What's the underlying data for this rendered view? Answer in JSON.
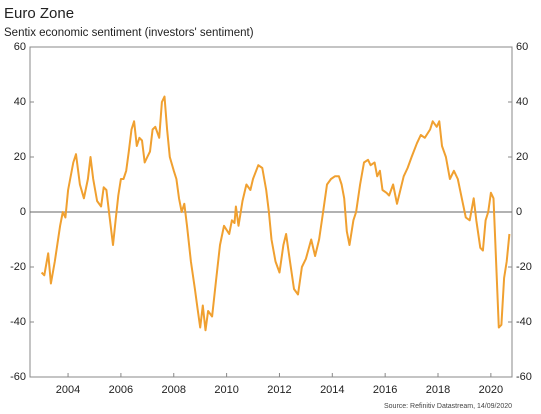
{
  "chart_data": {
    "type": "line",
    "title": "Euro Zone",
    "subtitle": "Sentix economic sentiment (investors' sentiment)",
    "source": "Source: Refinitiv Datastream, 14/09/2020",
    "xlim": [
      2002.56,
      2020.8
    ],
    "xticks": [
      2004,
      2006,
      2008,
      2010,
      2012,
      2014,
      2016,
      2018,
      2020
    ],
    "ylim": [
      -60,
      60
    ],
    "yticks": [
      -60,
      -40,
      -20,
      0,
      20,
      40,
      60
    ],
    "y2lim": [
      -60,
      60
    ],
    "y2ticks": [
      -60,
      -40,
      -20,
      0,
      20,
      40,
      60
    ],
    "zero_line": true,
    "x": [
      2003.0,
      2003.1,
      2003.25,
      2003.35,
      2003.5,
      2003.7,
      2003.8,
      2003.9,
      2004.0,
      2004.2,
      2004.3,
      2004.45,
      2004.6,
      2004.75,
      2004.85,
      2004.95,
      2005.1,
      2005.25,
      2005.35,
      2005.45,
      2005.55,
      2005.7,
      2005.8,
      2005.9,
      2006.0,
      2006.1,
      2006.2,
      2006.3,
      2006.4,
      2006.5,
      2006.6,
      2006.7,
      2006.8,
      2006.9,
      2007.0,
      2007.1,
      2007.2,
      2007.3,
      2007.45,
      2007.55,
      2007.65,
      2007.75,
      2007.85,
      2008.0,
      2008.1,
      2008.2,
      2008.3,
      2008.4,
      2008.5,
      2008.65,
      2008.8,
      2008.9,
      2009.0,
      2009.1,
      2009.2,
      2009.3,
      2009.45,
      2009.6,
      2009.75,
      2009.9,
      2010.1,
      2010.2,
      2010.3,
      2010.35,
      2010.45,
      2010.6,
      2010.75,
      2010.9,
      2011.0,
      2011.2,
      2011.35,
      2011.5,
      2011.6,
      2011.7,
      2011.85,
      2012.0,
      2012.15,
      2012.25,
      2012.4,
      2012.55,
      2012.7,
      2012.85,
      2013.0,
      2013.2,
      2013.35,
      2013.5,
      2013.65,
      2013.8,
      2013.95,
      2014.1,
      2014.25,
      2014.35,
      2014.45,
      2014.55,
      2014.65,
      2014.8,
      2014.9,
      2015.05,
      2015.2,
      2015.35,
      2015.45,
      2015.6,
      2015.7,
      2015.8,
      2015.9,
      2016.05,
      2016.15,
      2016.3,
      2016.45,
      2016.55,
      2016.7,
      2016.85,
      2017.0,
      2017.2,
      2017.35,
      2017.5,
      2017.7,
      2017.8,
      2017.95,
      2018.05,
      2018.15,
      2018.3,
      2018.45,
      2018.6,
      2018.75,
      2018.9,
      2019.05,
      2019.2,
      2019.35,
      2019.45,
      2019.6,
      2019.7,
      2019.8,
      2019.9,
      2020.0,
      2020.1,
      2020.2,
      2020.3,
      2020.4,
      2020.5,
      2020.6,
      2020.7
    ],
    "series": [
      {
        "color": "#f0a030",
        "values": [
          -22,
          -23,
          -15,
          -26,
          -18,
          -5,
          0,
          -2,
          8,
          18,
          21,
          10,
          5,
          12,
          20,
          12,
          4,
          2,
          9,
          8,
          0,
          -12,
          -3,
          6,
          12,
          12,
          15,
          22,
          30,
          33,
          24,
          27,
          26,
          18,
          20,
          22,
          30,
          31,
          27,
          40,
          42,
          30,
          20,
          15,
          12,
          5,
          0,
          3,
          -5,
          -18,
          -28,
          -35,
          -42,
          -34,
          -43,
          -36,
          -38,
          -25,
          -12,
          -5,
          -8,
          -3,
          -4,
          2,
          -5,
          4,
          10,
          8,
          12,
          17,
          16,
          8,
          0,
          -10,
          -18,
          -22,
          -12,
          -8,
          -18,
          -28,
          -30,
          -20,
          -17,
          -10,
          -16,
          -10,
          0,
          10,
          12,
          13,
          13,
          10,
          5,
          -7,
          -12,
          -3,
          0,
          10,
          18,
          19,
          17,
          18,
          13,
          15,
          8,
          7,
          6,
          10,
          3,
          7,
          13,
          16,
          20,
          25,
          28,
          27,
          30,
          33,
          31,
          33,
          24,
          20,
          12,
          15,
          12,
          5,
          -2,
          -3,
          5,
          -3,
          -13,
          -14,
          -3,
          0,
          7,
          5,
          -18,
          -42,
          -41,
          -24,
          -18,
          -8
        ]
      }
    ]
  }
}
